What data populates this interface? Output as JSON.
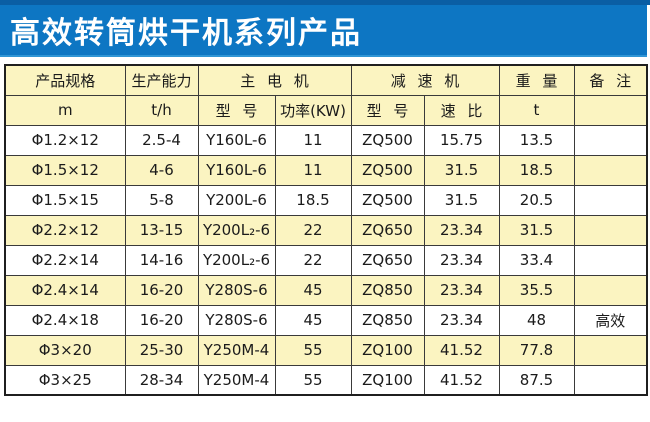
{
  "banner": {
    "title": "高效转筒烘干机系列产品",
    "bg_color": "#0d76c3",
    "top_strip_color": "#0a5ea4",
    "text_color": "#ffffff"
  },
  "table": {
    "header_row1": {
      "product_spec": "产品规格",
      "capacity": "生产能力",
      "main_motor": "主 电 机",
      "reducer": "减 速 机",
      "weight": "重 量",
      "remarks": "备 注"
    },
    "header_row2": {
      "spec_unit": "m",
      "capacity_unit": "t/h",
      "motor_model": "型 号",
      "motor_power": "功率(KW)",
      "reducer_model": "型 号",
      "speed_ratio": "速 比",
      "weight_unit": "t",
      "remarks_blank": ""
    },
    "rows": [
      [
        "Φ1.2×12",
        "2.5-4",
        "Y160L-6",
        "11",
        "ZQ500",
        "15.75",
        "13.5",
        ""
      ],
      [
        "Φ1.5×12",
        "4-6",
        "Y160L-6",
        "11",
        "ZQ500",
        "31.5",
        "18.5",
        ""
      ],
      [
        "Φ1.5×15",
        "5-8",
        "Y200L-6",
        "18.5",
        "ZQ500",
        "31.5",
        "20.5",
        ""
      ],
      [
        "Φ2.2×12",
        "13-15",
        "Y200L₂-6",
        "22",
        "ZQ650",
        "23.34",
        "31.5",
        ""
      ],
      [
        "Φ2.2×14",
        "14-16",
        "Y200L₂-6",
        "22",
        "ZQ650",
        "23.34",
        "33.4",
        ""
      ],
      [
        "Φ2.4×14",
        "16-20",
        "Y280S-6",
        "45",
        "ZQ850",
        "23.34",
        "35.5",
        ""
      ],
      [
        "Φ2.4×18",
        "16-20",
        "Y280S-6",
        "45",
        "ZQ850",
        "23.34",
        "48",
        "高效"
      ],
      [
        "Φ3×20",
        "25-30",
        "Y250M-4",
        "55",
        "ZQ100",
        "41.52",
        "77.8",
        ""
      ],
      [
        "Φ3×25",
        "28-34",
        "Y250M-4",
        "55",
        "ZQ100",
        "41.52",
        "87.5",
        ""
      ]
    ],
    "row_colors": {
      "white": "#ffffff",
      "yellow": "#fbf4c1"
    },
    "border_color": "#3a3a3a"
  }
}
